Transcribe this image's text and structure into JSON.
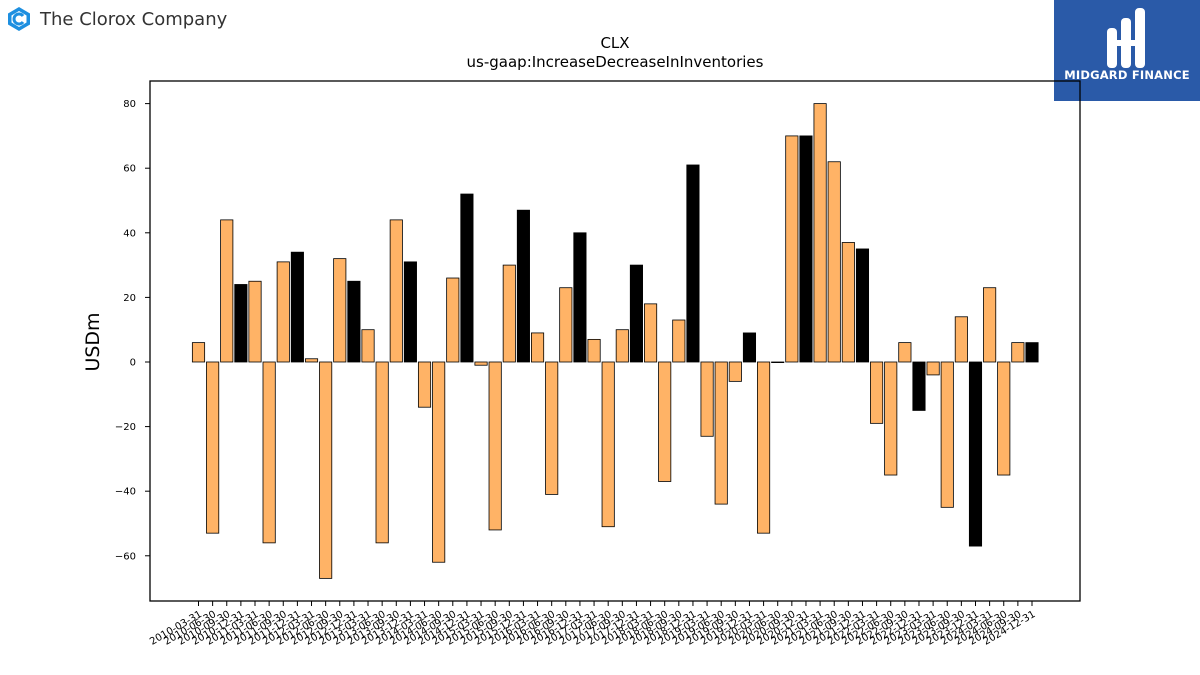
{
  "header": {
    "company_name": "The Clorox Company",
    "company_logo_icon": "clorox-logo-icon",
    "brand_name": "MIDGARD FINANCE",
    "brand_logo_icon": "midgard-logo-icon"
  },
  "colors": {
    "orange": "#ffb366",
    "black": "#000000",
    "brand_bg": "#2a5aa8"
  },
  "chart_data": {
    "type": "bar",
    "title": "CLX",
    "subtitle": "us-gaap:IncreaseDecreaseInInventories",
    "ylabel": "USDm",
    "xlabel": "",
    "ylim": [
      -74,
      87
    ],
    "yticks": [
      -60,
      -40,
      -20,
      0,
      20,
      40,
      60,
      80
    ],
    "grid": false,
    "categories": [
      "2010-03-31",
      "2010-06-30",
      "2010-09-30",
      "2010-12-31",
      "2011-03-31",
      "2011-06-30",
      "2011-09-30",
      "2011-12-31",
      "2012-03-31",
      "2012-06-30",
      "2012-09-30",
      "2012-12-31",
      "2013-03-31",
      "2013-06-30",
      "2013-09-30",
      "2013-12-31",
      "2014-03-31",
      "2014-06-30",
      "2014-09-30",
      "2014-12-31",
      "2015-03-31",
      "2015-06-30",
      "2015-09-30",
      "2015-12-31",
      "2016-03-31",
      "2016-06-30",
      "2016-09-30",
      "2016-12-31",
      "2017-03-31",
      "2017-06-30",
      "2017-09-30",
      "2017-12-31",
      "2018-03-31",
      "2018-06-30",
      "2018-09-30",
      "2018-12-31",
      "2019-03-31",
      "2019-06-30",
      "2019-09-30",
      "2019-12-31",
      "2020-03-31",
      "2020-06-30",
      "2020-09-30",
      "2020-12-31",
      "2021-03-31",
      "2021-06-30",
      "2021-09-30",
      "2021-12-31",
      "2022-03-31",
      "2022-06-30",
      "2022-09-30",
      "2022-12-31",
      "2023-03-31",
      "2023-06-30",
      "2023-09-30",
      "2023-12-31",
      "2024-03-31",
      "2024-06-30",
      "2024-09-30",
      "2024-12-31"
    ],
    "values": [
      6,
      -53,
      44,
      24,
      25,
      -56,
      31,
      34,
      1,
      -67,
      32,
      25,
      10,
      -56,
      44,
      31,
      -14,
      -62,
      26,
      52,
      -1,
      -52,
      30,
      47,
      9,
      -41,
      23,
      40,
      7,
      -51,
      10,
      30,
      18,
      -37,
      13,
      61,
      -23,
      -44,
      -6,
      9,
      -53,
      0,
      70,
      70,
      80,
      62,
      37,
      35,
      -19,
      -35,
      6,
      -15,
      -4,
      -45,
      14,
      -57,
      23,
      -35,
      6,
      6
    ],
    "highlight": [
      false,
      false,
      false,
      true,
      false,
      false,
      false,
      true,
      false,
      false,
      false,
      true,
      false,
      false,
      false,
      true,
      false,
      false,
      false,
      true,
      false,
      false,
      false,
      true,
      false,
      false,
      false,
      true,
      false,
      false,
      false,
      true,
      false,
      false,
      false,
      true,
      false,
      false,
      false,
      true,
      false,
      false,
      false,
      true,
      false,
      false,
      false,
      true,
      false,
      false,
      false,
      true,
      false,
      false,
      false,
      true,
      false,
      false,
      false,
      true
    ]
  }
}
